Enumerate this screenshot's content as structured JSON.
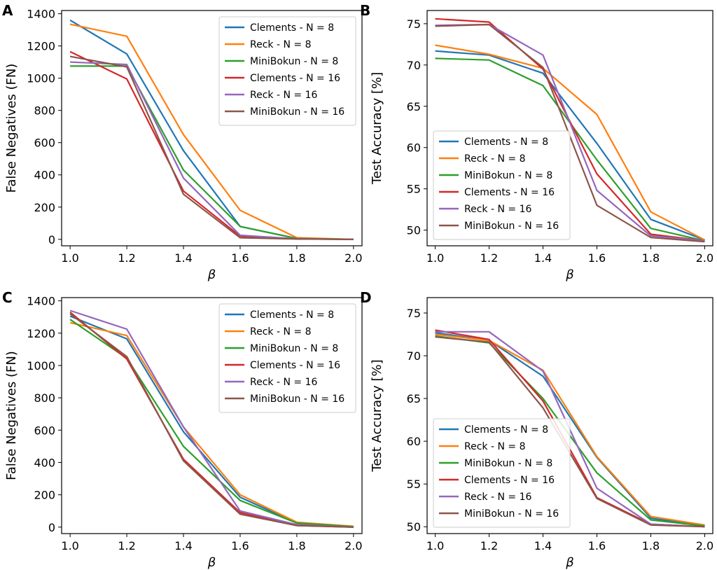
{
  "figure": {
    "colors": {
      "Clements - N = 8": "#1f77b4",
      "Reck - N = 8": "#ff7f0e",
      "MiniBokun - N = 8": "#2ca02c",
      "Clements - N = 16": "#d62728",
      "Reck - N = 16": "#9467bd",
      "MiniBokun - N = 16": "#8c564b"
    }
  },
  "chart_data": [
    {
      "panel": "A",
      "type": "line",
      "xlabel": "β",
      "ylabel": "False Negatives (FN)",
      "x": [
        1.0,
        1.2,
        1.4,
        1.6,
        1.8,
        2.0
      ],
      "xticks": [
        "1.0",
        "1.2",
        "1.4",
        "1.6",
        "1.8",
        "2.0"
      ],
      "xlim": [
        0.97,
        2.03
      ],
      "yticks": [
        0,
        200,
        400,
        600,
        800,
        1000,
        1200,
        1400
      ],
      "ylim": [
        -40,
        1420
      ],
      "legend_position": "top-right",
      "series": [
        {
          "name": "Clements - N = 8",
          "values": [
            1360,
            1150,
            550,
            80,
            5,
            0
          ]
        },
        {
          "name": "Reck - N = 8",
          "values": [
            1335,
            1260,
            650,
            180,
            10,
            0
          ]
        },
        {
          "name": "MiniBokun - N = 8",
          "values": [
            1075,
            1075,
            430,
            80,
            5,
            0
          ]
        },
        {
          "name": "Clements - N = 16",
          "values": [
            1165,
            995,
            300,
            20,
            3,
            0
          ]
        },
        {
          "name": "Reck - N = 16",
          "values": [
            1100,
            1085,
            380,
            25,
            3,
            0
          ]
        },
        {
          "name": "MiniBokun - N = 16",
          "values": [
            1135,
            1070,
            280,
            10,
            2,
            0
          ]
        }
      ]
    },
    {
      "panel": "B",
      "type": "line",
      "xlabel": "β",
      "ylabel": "Test Accuracy [%]",
      "x": [
        1.0,
        1.2,
        1.4,
        1.6,
        1.8,
        2.0
      ],
      "xticks": [
        "1.0",
        "1.2",
        "1.4",
        "1.6",
        "1.8",
        "2.0"
      ],
      "xlim": [
        0.97,
        2.03
      ],
      "yticks": [
        50,
        55,
        60,
        65,
        70,
        75
      ],
      "ylim": [
        48.1,
        76.6
      ],
      "legend_position": "bottom-left",
      "series": [
        {
          "name": "Clements - N = 8",
          "values": [
            71.7,
            71.2,
            69.0,
            60.5,
            51.3,
            48.8
          ]
        },
        {
          "name": "Reck - N = 8",
          "values": [
            72.4,
            71.3,
            69.6,
            64.0,
            52.2,
            48.8
          ]
        },
        {
          "name": "MiniBokun - N = 8",
          "values": [
            70.8,
            70.6,
            67.5,
            58.5,
            50.2,
            48.7
          ]
        },
        {
          "name": "Clements - N = 16",
          "values": [
            75.6,
            75.2,
            69.5,
            56.8,
            49.5,
            48.7
          ]
        },
        {
          "name": "Reck - N = 16",
          "values": [
            74.8,
            74.9,
            71.2,
            54.8,
            49.3,
            48.7
          ]
        },
        {
          "name": "MiniBokun - N = 16",
          "values": [
            74.7,
            74.9,
            69.7,
            53.0,
            49.1,
            48.6
          ]
        }
      ]
    },
    {
      "panel": "C",
      "type": "line",
      "xlabel": "β",
      "ylabel": "False Negatives (FN)",
      "x": [
        1.0,
        1.2,
        1.4,
        1.6,
        1.8,
        2.0
      ],
      "xticks": [
        "1.0",
        "1.2",
        "1.4",
        "1.6",
        "1.8",
        "2.0"
      ],
      "xlim": [
        0.97,
        2.03
      ],
      "yticks": [
        0,
        200,
        400,
        600,
        800,
        1000,
        1200,
        1400
      ],
      "ylim": [
        -40,
        1420
      ],
      "legend_position": "top-right",
      "series": [
        {
          "name": "Clements - N = 8",
          "values": [
            1305,
            1165,
            590,
            185,
            25,
            0
          ]
        },
        {
          "name": "Reck - N = 8",
          "values": [
            1265,
            1185,
            620,
            200,
            30,
            5
          ]
        },
        {
          "name": "MiniBokun - N = 8",
          "values": [
            1285,
            1045,
            500,
            165,
            25,
            3
          ]
        },
        {
          "name": "Clements - N = 16",
          "values": [
            1330,
            1040,
            420,
            90,
            10,
            0
          ]
        },
        {
          "name": "Reck - N = 16",
          "values": [
            1340,
            1225,
            620,
            100,
            15,
            0
          ]
        },
        {
          "name": "MiniBokun - N = 16",
          "values": [
            1320,
            1055,
            410,
            80,
            10,
            0
          ]
        }
      ]
    },
    {
      "panel": "D",
      "type": "line",
      "xlabel": "β",
      "ylabel": "Test Accuracy [%]",
      "x": [
        1.0,
        1.2,
        1.4,
        1.6,
        1.8,
        2.0
      ],
      "xticks": [
        "1.0",
        "1.2",
        "1.4",
        "1.6",
        "1.8",
        "2.0"
      ],
      "xlim": [
        0.97,
        2.03
      ],
      "yticks": [
        50,
        55,
        60,
        65,
        70,
        75
      ],
      "ylim": [
        49.2,
        76.8
      ],
      "legend_position": "bottom-left",
      "series": [
        {
          "name": "Clements - N = 8",
          "values": [
            72.7,
            71.8,
            67.6,
            58.1,
            51.0,
            50.1
          ]
        },
        {
          "name": "Reck - N = 8",
          "values": [
            72.5,
            71.8,
            68.3,
            58.2,
            51.2,
            50.2
          ]
        },
        {
          "name": "MiniBokun - N = 8",
          "values": [
            72.3,
            71.5,
            65.0,
            56.3,
            50.8,
            50.1
          ]
        },
        {
          "name": "Clements - N = 16",
          "values": [
            73.0,
            71.9,
            64.7,
            53.4,
            50.3,
            50.0
          ]
        },
        {
          "name": "Reck - N = 16",
          "values": [
            72.8,
            72.8,
            68.2,
            54.5,
            50.3,
            50.0
          ]
        },
        {
          "name": "MiniBokun - N = 16",
          "values": [
            72.2,
            71.6,
            63.9,
            53.3,
            50.2,
            50.0
          ]
        }
      ]
    }
  ]
}
